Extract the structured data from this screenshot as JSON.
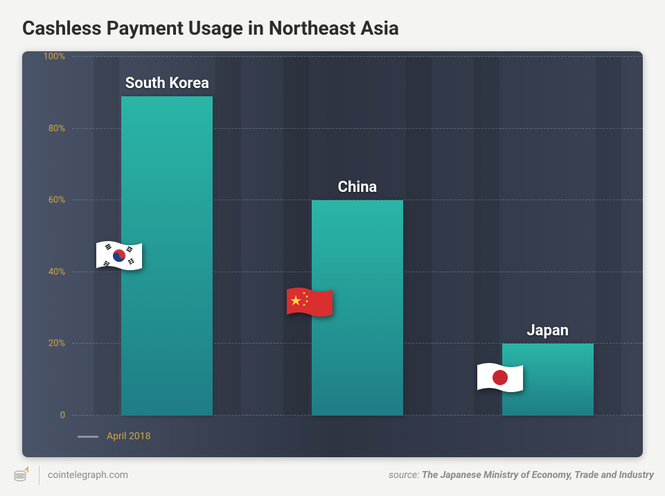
{
  "title": "Cashless Payment Usage in Northeast Asia",
  "chart": {
    "type": "bar",
    "background_gradient": [
      "#4a5468",
      "#2e3442",
      "#3a4254"
    ],
    "ylim": [
      0,
      100
    ],
    "ytick_step": 20,
    "ytick_suffix": "%",
    "ytick_zero_suffix": "",
    "ytick_color": "#d4a645",
    "ytick_fontsize": 13,
    "grid_color": "#9aa0ae",
    "grid_dash": "6,6",
    "stripe_color": "rgba(0,0,0,0.10)",
    "bar_gradient": [
      "#2ab6a6",
      "#1f7d85"
    ],
    "bar_label_color": "#ffffff",
    "bar_label_fontsize": 22,
    "bars": [
      {
        "label": "South Korea",
        "value": 89,
        "flag": "kr"
      },
      {
        "label": "China",
        "value": 60,
        "flag": "cn"
      },
      {
        "label": "Japan",
        "value": 20,
        "flag": "jp"
      }
    ],
    "legend_label": "April 2018",
    "legend_swatch_color": "#8c93a3",
    "legend_text_color": "#d4a645"
  },
  "footer": {
    "site": "cointelegraph.com",
    "source_label": "source: ",
    "source_value": "The Japanese Ministry of Economy, Trade and Industry",
    "text_color": "#8a8a86",
    "logo_stroke": "#b9b9b3"
  }
}
